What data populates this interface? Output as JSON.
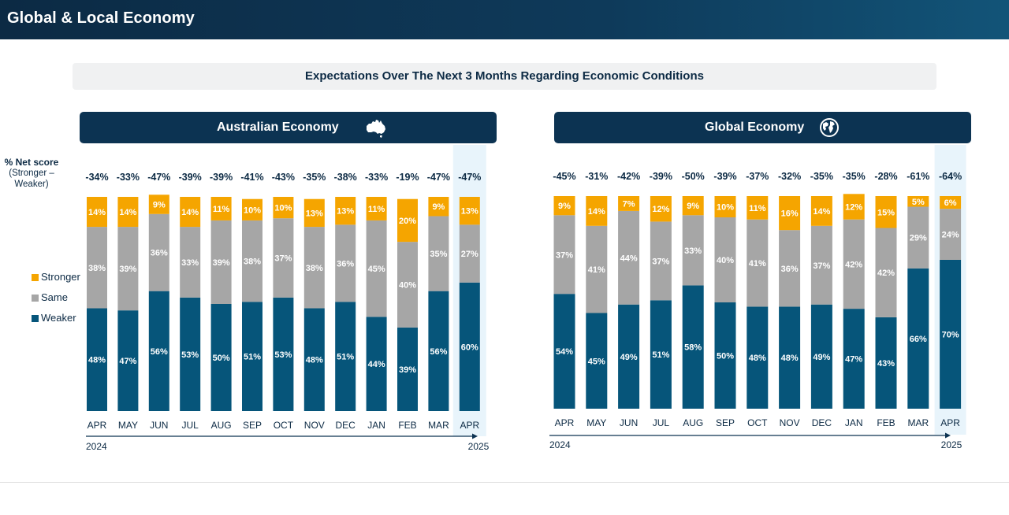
{
  "header": {
    "title": "Global & Local Economy"
  },
  "subtitle": "Expectations Over The Next 3 Months Regarding Economic Conditions",
  "net_score_label": {
    "line1": "% Net score",
    "line2": "(Stronger –",
    "line3": "Weaker)"
  },
  "legend": [
    {
      "label": "Stronger",
      "color": "#f5a500"
    },
    {
      "label": "Same",
      "color": "#a6a6a6"
    },
    {
      "label": "Weaker",
      "color": "#06557a"
    }
  ],
  "colors": {
    "stronger": "#f5a500",
    "same": "#a6a6a6",
    "weaker": "#06557a",
    "highlight": "#e8f4fb",
    "text": "#0c2a44",
    "axis": "#0c3352"
  },
  "panels": {
    "australian": {
      "title": "Australian Economy",
      "icon": "australia-map-icon"
    },
    "global": {
      "title": "Global Economy",
      "icon": "globe-icon"
    }
  },
  "chart_data": [
    {
      "type": "bar",
      "stacked": true,
      "title": "Australian Economy",
      "categories": [
        "APR",
        "MAY",
        "JUN",
        "JUL",
        "AUG",
        "SEP",
        "OCT",
        "NOV",
        "DEC",
        "JAN",
        "FEB",
        "MAR",
        "APR"
      ],
      "year_start": "2024",
      "year_end": "2025",
      "net_scores": [
        "-34%",
        "-33%",
        "-47%",
        "-39%",
        "-39%",
        "-41%",
        "-43%",
        "-35%",
        "-38%",
        "-33%",
        "-19%",
        "-47%",
        "-47%"
      ],
      "series": [
        {
          "name": "Weaker",
          "values": [
            48,
            47,
            56,
            53,
            50,
            51,
            53,
            48,
            51,
            44,
            39,
            56,
            60
          ]
        },
        {
          "name": "Same",
          "values": [
            38,
            39,
            36,
            33,
            39,
            38,
            37,
            38,
            36,
            45,
            40,
            35,
            27
          ]
        },
        {
          "name": "Stronger",
          "values": [
            14,
            14,
            9,
            14,
            11,
            10,
            10,
            13,
            13,
            11,
            20,
            9,
            13
          ]
        }
      ],
      "highlight_index": 12,
      "ylim": [
        0,
        100
      ]
    },
    {
      "type": "bar",
      "stacked": true,
      "title": "Global Economy",
      "categories": [
        "APR",
        "MAY",
        "JUN",
        "JUL",
        "AUG",
        "SEP",
        "OCT",
        "NOV",
        "DEC",
        "JAN",
        "FEB",
        "MAR",
        "APR"
      ],
      "year_start": "2024",
      "year_end": "2025",
      "net_scores": [
        "-45%",
        "-31%",
        "-42%",
        "-39%",
        "-50%",
        "-39%",
        "-37%",
        "-32%",
        "-35%",
        "-35%",
        "-28%",
        "-61%",
        "-64%"
      ],
      "series": [
        {
          "name": "Weaker",
          "values": [
            54,
            45,
            49,
            51,
            58,
            50,
            48,
            48,
            49,
            47,
            43,
            66,
            70
          ]
        },
        {
          "name": "Same",
          "values": [
            37,
            41,
            44,
            37,
            33,
            40,
            41,
            36,
            37,
            42,
            42,
            29,
            24
          ]
        },
        {
          "name": "Stronger",
          "values": [
            9,
            14,
            7,
            12,
            9,
            10,
            11,
            16,
            14,
            12,
            15,
            5,
            6
          ]
        }
      ],
      "highlight_index": 12,
      "ylim": [
        0,
        100
      ]
    }
  ]
}
